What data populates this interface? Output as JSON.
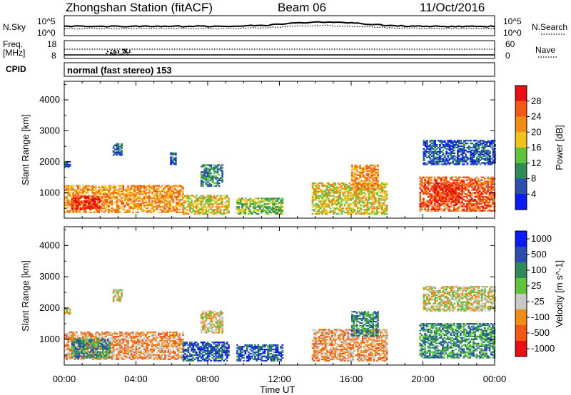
{
  "header": {
    "station": "Zhongshan Station (fitACF)",
    "beam": "Beam 06",
    "date": "11/Oct/2016"
  },
  "params": {
    "nsky_label": "N.Sky",
    "nsky_tick_top": "10^5",
    "nsky_tick_bottom": "10^0",
    "nsearch_label": "N.Search",
    "freq_label_1": "Freq.",
    "freq_label_2": "[MHz]",
    "freq_tick_top": "18",
    "freq_tick_bottom": "8",
    "nave_tick_top": "60",
    "nave_tick_bottom": "0",
    "nave_label": "Nave",
    "cpid_label": "CPID",
    "cpid_text": "normal (fast stereo) 153"
  },
  "colors": {
    "power": [
      "#0a1cf0",
      "#2b4fb0",
      "#2e8b57",
      "#5fc43c",
      "#f2c21a",
      "#f08c1a",
      "#f05a14",
      "#e81010"
    ],
    "velocity": [
      "#e81010",
      "#f05a14",
      "#f08c1a",
      "#c8c8c8",
      "#5fc43c",
      "#2e8b57",
      "#2b4fb0",
      "#0a1cf0"
    ]
  },
  "chart_data": [
    {
      "type": "heatmap",
      "name": "power-panel",
      "ylabel": "Slant Range [km]",
      "xlabel": "Time UT",
      "ylim": [
        180,
        4600
      ],
      "yticks": [
        1000,
        2000,
        3000,
        4000
      ],
      "xticks": [
        "00:00",
        "04:00",
        "08:00",
        "12:00",
        "16:00",
        "20:00",
        "00:00"
      ],
      "colorbar": {
        "label": "Power [dB]",
        "ticks": [
          "4",
          "8",
          "12",
          "16",
          "20",
          "24",
          "28"
        ]
      },
      "echo_regions": [
        {
          "t": [
            0.0,
            6.6
          ],
          "r": [
            350,
            1250
          ],
          "level": 5
        },
        {
          "t": [
            0.4,
            2.0
          ],
          "r": [
            450,
            900
          ],
          "level": 7
        },
        {
          "t": [
            6.6,
            9.2
          ],
          "r": [
            300,
            900
          ],
          "level": 4
        },
        {
          "t": [
            7.6,
            8.8
          ],
          "r": [
            1200,
            1900
          ],
          "level": 2
        },
        {
          "t": [
            9.6,
            12.2
          ],
          "r": [
            300,
            800
          ],
          "level": 3
        },
        {
          "t": [
            13.8,
            18.0
          ],
          "r": [
            300,
            1300
          ],
          "level": 4
        },
        {
          "t": [
            16.0,
            17.5
          ],
          "r": [
            1100,
            1900
          ],
          "level": 5
        },
        {
          "t": [
            19.8,
            24.0
          ],
          "r": [
            400,
            1500
          ],
          "level": 6
        },
        {
          "t": [
            20.6,
            22.0
          ],
          "r": [
            700,
            1300
          ],
          "level": 7
        },
        {
          "t": [
            20.0,
            24.0
          ],
          "r": [
            1900,
            2700
          ],
          "level": 1
        },
        {
          "t": [
            2.7,
            3.2
          ],
          "r": [
            2200,
            2600
          ],
          "level": 1
        },
        {
          "t": [
            5.9,
            6.2
          ],
          "r": [
            1900,
            2300
          ],
          "level": 1
        },
        {
          "t": [
            0.0,
            0.3
          ],
          "r": [
            1800,
            2000
          ],
          "level": 1
        }
      ]
    },
    {
      "type": "heatmap",
      "name": "velocity-panel",
      "ylabel": "Slant Range [km]",
      "xlabel": "Time UT",
      "ylim": [
        180,
        4600
      ],
      "yticks": [
        1000,
        2000,
        3000,
        4000
      ],
      "xticks": [
        "00:00",
        "04:00",
        "08:00",
        "12:00",
        "16:00",
        "20:00",
        "00:00"
      ],
      "colorbar": {
        "label": "Velocity [m s^-1]",
        "ticks": [
          "1000",
          "500",
          "100",
          "25",
          "-25",
          "-100",
          "-500",
          "-1000"
        ]
      },
      "echo_regions": [
        {
          "t": [
            0.0,
            6.6
          ],
          "r": [
            350,
            1250
          ],
          "level": 2
        },
        {
          "t": [
            0.4,
            2.5
          ],
          "r": [
            400,
            1000
          ],
          "level": 5
        },
        {
          "t": [
            6.6,
            9.2
          ],
          "r": [
            300,
            900
          ],
          "level": 6
        },
        {
          "t": [
            7.6,
            8.8
          ],
          "r": [
            1200,
            1900
          ],
          "level": 3
        },
        {
          "t": [
            9.6,
            12.2
          ],
          "r": [
            300,
            800
          ],
          "level": 6
        },
        {
          "t": [
            13.8,
            18.0
          ],
          "r": [
            300,
            1300
          ],
          "level": 2
        },
        {
          "t": [
            16.0,
            17.5
          ],
          "r": [
            1100,
            1900
          ],
          "level": 5
        },
        {
          "t": [
            19.8,
            24.0
          ],
          "r": [
            400,
            1500
          ],
          "level": 5
        },
        {
          "t": [
            20.0,
            24.0
          ],
          "r": [
            1900,
            2700
          ],
          "level": 3
        },
        {
          "t": [
            2.7,
            3.2
          ],
          "r": [
            2200,
            2600
          ],
          "level": 3
        },
        {
          "t": [
            0.0,
            0.3
          ],
          "r": [
            1800,
            2000
          ],
          "level": 3
        }
      ]
    }
  ]
}
